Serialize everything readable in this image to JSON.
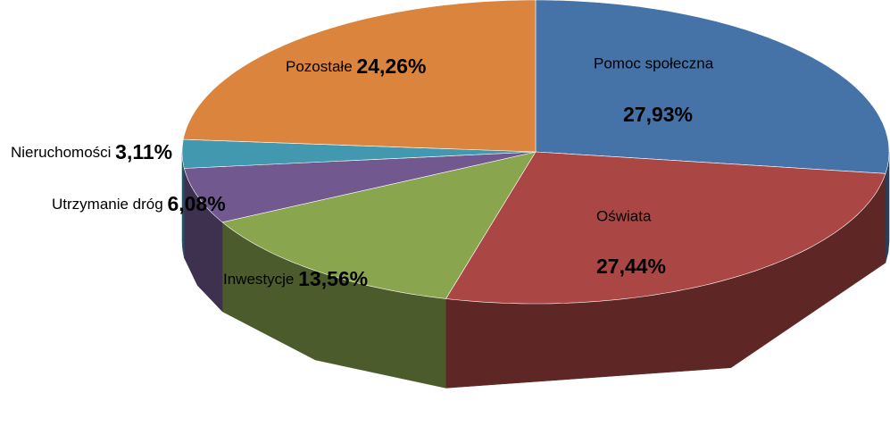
{
  "chart_data": {
    "type": "pie3d",
    "categories": [
      "Pomoc społeczna",
      "Oświata",
      "Inwestycje",
      "Utrzymanie dróg",
      "Nieruchomości",
      "Pozostałe"
    ],
    "values": [
      27.93,
      27.44,
      13.56,
      6.08,
      3.11,
      24.26
    ],
    "value_labels": [
      "27,93%",
      "27,44%",
      "13,56%",
      "6,08%",
      "3,11%",
      "24,26%"
    ],
    "colors": [
      "#4572a7",
      "#aa4643",
      "#89a54e",
      "#71588f",
      "#4198af",
      "#db843d"
    ]
  }
}
